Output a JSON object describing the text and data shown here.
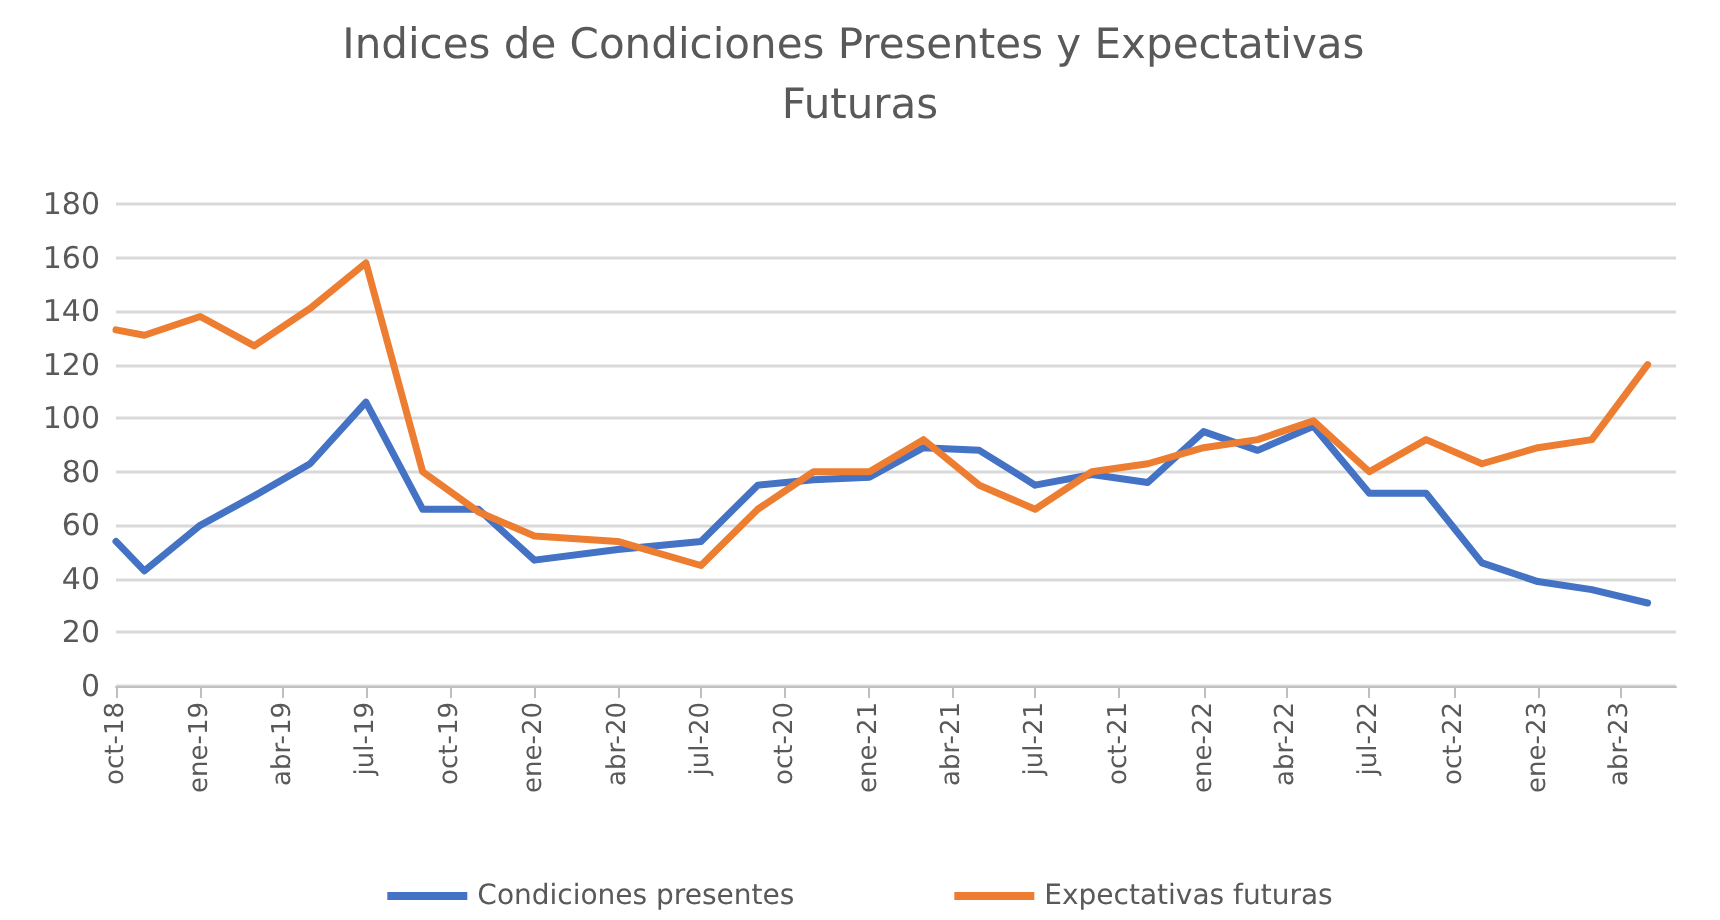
{
  "chart_data": {
    "type": "line",
    "title": "Indices de Condiciones Presentes y Expectativas Futuras",
    "x": [
      "2018-10",
      "2018-11",
      "2019-01",
      "2019-03",
      "2019-05",
      "2019-07",
      "2019-09",
      "2019-11",
      "2020-01",
      "2020-04",
      "2020-07",
      "2020-09",
      "2020-11",
      "2021-01",
      "2021-03",
      "2021-05",
      "2021-07",
      "2021-09",
      "2021-11",
      "2022-01",
      "2022-03",
      "2022-05",
      "2022-07",
      "2022-09",
      "2022-11",
      "2023-01",
      "2023-03",
      "2023-05"
    ],
    "series": [
      {
        "name": "Condiciones presentes",
        "color": "#4472c4",
        "values": [
          54,
          43,
          60,
          71,
          83,
          106,
          66,
          66,
          47,
          51,
          54,
          75,
          77,
          78,
          89,
          88,
          75,
          79,
          76,
          95,
          88,
          97,
          72,
          72,
          46,
          39,
          36,
          31
        ]
      },
      {
        "name": "Expectativas futuras",
        "color": "#ed7d31",
        "values": [
          133,
          131,
          138,
          127,
          141,
          158,
          80,
          65,
          56,
          54,
          45,
          66,
          80,
          80,
          92,
          75,
          66,
          80,
          83,
          89,
          92,
          99,
          80,
          92,
          83,
          89,
          92,
          120
        ]
      }
    ],
    "xlim": [
      "2018-10",
      "2023-06"
    ],
    "xticks": [
      {
        "value": "2018-10",
        "label": "oct-18"
      },
      {
        "value": "2019-01",
        "label": "ene-19"
      },
      {
        "value": "2019-04",
        "label": "abr-19"
      },
      {
        "value": "2019-07",
        "label": "jul-19"
      },
      {
        "value": "2019-10",
        "label": "oct-19"
      },
      {
        "value": "2020-01",
        "label": "ene-20"
      },
      {
        "value": "2020-04",
        "label": "abr-20"
      },
      {
        "value": "2020-07",
        "label": "jul-20"
      },
      {
        "value": "2020-10",
        "label": "oct-20"
      },
      {
        "value": "2021-01",
        "label": "ene-21"
      },
      {
        "value": "2021-04",
        "label": "abr-21"
      },
      {
        "value": "2021-07",
        "label": "jul-21"
      },
      {
        "value": "2021-10",
        "label": "oct-21"
      },
      {
        "value": "2022-01",
        "label": "ene-22"
      },
      {
        "value": "2022-04",
        "label": "abr-22"
      },
      {
        "value": "2022-07",
        "label": "jul-22"
      },
      {
        "value": "2022-10",
        "label": "oct-22"
      },
      {
        "value": "2023-01",
        "label": "ene-23"
      },
      {
        "value": "2023-04",
        "label": "abr-23"
      }
    ],
    "ylim": [
      0,
      180
    ],
    "yticks": [
      0,
      20,
      40,
      60,
      80,
      100,
      120,
      140,
      160,
      180
    ],
    "grid": "y",
    "legend": "bottom",
    "marker": "none",
    "line_style": "solid"
  }
}
